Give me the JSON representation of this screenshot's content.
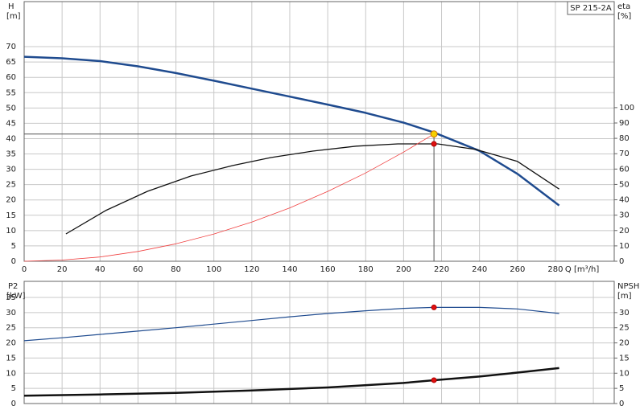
{
  "chart_data": [
    {
      "type": "line",
      "title": "SP 215-2A",
      "ylabel": "H",
      "yunit": "[m]",
      "y2label": "eta",
      "y2unit": "[%]",
      "xlabel": "Q [m³/h]",
      "xlim": [
        0,
        311
      ],
      "xticks": [
        0,
        20,
        40,
        60,
        80,
        100,
        120,
        140,
        160,
        180,
        200,
        220,
        240,
        260,
        280
      ],
      "show_xtick_labels": true,
      "ylim": [
        0,
        84.7
      ],
      "yticks": [
        0,
        5,
        10,
        15,
        20,
        25,
        30,
        35,
        40,
        45,
        50,
        55,
        60,
        65,
        70
      ],
      "y2lim": [
        0,
        169
      ],
      "y2ticks": [
        0,
        10,
        20,
        30,
        40,
        50,
        60,
        70,
        80,
        90,
        100
      ],
      "grid": true,
      "series": [
        {
          "color": "#1f4b8f",
          "width": 2.5,
          "axis": "y",
          "x": [
            0,
            20,
            40,
            60,
            80,
            100,
            120,
            140,
            160,
            180,
            200,
            216,
            240,
            260,
            282
          ],
          "values": [
            66.7,
            66.2,
            65.3,
            63.6,
            61.4,
            58.9,
            56.3,
            53.7,
            51.1,
            48.4,
            45.2,
            42,
            36,
            28.5,
            18.2
          ]
        },
        {
          "color": "#111111",
          "width": 1.3,
          "axis": "y2",
          "x": [
            22,
            43,
            65,
            88,
            110,
            130,
            152,
            175,
            197,
            218,
            238,
            260,
            282
          ],
          "values": [
            17.8,
            33,
            45.5,
            55.5,
            62.3,
            67.5,
            71.7,
            74.9,
            76.4,
            76.4,
            72.8,
            65,
            47
          ]
        },
        {
          "color": "#f04040",
          "width": 0.8,
          "axis": "y",
          "x": [
            0,
            20,
            40,
            60,
            80,
            100,
            120,
            140,
            160,
            180,
            200,
            216
          ],
          "values": [
            0,
            0.4,
            1.4,
            3.2,
            5.7,
            8.9,
            12.8,
            17.4,
            22.8,
            28.8,
            35.6,
            41.5
          ]
        },
        {
          "color": "#f5d000",
          "marker": true,
          "guides": true,
          "axis": "y",
          "x": [
            216
          ],
          "values": [
            41.5
          ]
        },
        {
          "color": "#e01010",
          "marker": true,
          "axis": "y2",
          "x": [
            216
          ],
          "values": [
            76.4
          ]
        }
      ]
    },
    {
      "type": "line",
      "ylabel": "P2",
      "yunit": "[kW]",
      "y2label": "NPSH",
      "y2unit": "[m]",
      "xlim": [
        0,
        311
      ],
      "xticks": [
        0,
        20,
        40,
        60,
        80,
        100,
        120,
        140,
        160,
        180,
        200,
        220,
        240,
        260,
        280,
        300
      ],
      "show_xtick_labels": false,
      "ylim": [
        0,
        40.3
      ],
      "yticks": [
        0,
        5,
        10,
        15,
        20,
        25,
        30,
        35
      ],
      "y2lim": [
        0,
        40.3
      ],
      "y2ticks": [
        0,
        5,
        10,
        15,
        20,
        25,
        30
      ],
      "grid": true,
      "series": [
        {
          "color": "#1f4b8f",
          "width": 1.2,
          "axis": "y",
          "x": [
            0,
            20,
            40,
            60,
            80,
            100,
            120,
            140,
            160,
            180,
            200,
            216,
            240,
            260,
            282
          ],
          "values": [
            20.7,
            21.7,
            22.8,
            23.9,
            25,
            26.2,
            27.4,
            28.6,
            29.7,
            30.6,
            31.4,
            31.7,
            31.7,
            31.2,
            29.7
          ]
        },
        {
          "color": "#111111",
          "width": 2.5,
          "axis": "y2",
          "x": [
            0,
            40,
            80,
            120,
            160,
            200,
            216,
            240,
            260,
            282
          ],
          "values": [
            2.6,
            3,
            3.5,
            4.3,
            5.3,
            6.8,
            7.7,
            8.9,
            10.2,
            11.7
          ]
        },
        {
          "color": "#e01010",
          "marker": true,
          "axis": "y",
          "x": [
            216
          ],
          "values": [
            31.7
          ]
        },
        {
          "color": "#e01010",
          "marker": true,
          "axis": "y2",
          "x": [
            216
          ],
          "values": [
            7.7
          ]
        }
      ]
    }
  ]
}
